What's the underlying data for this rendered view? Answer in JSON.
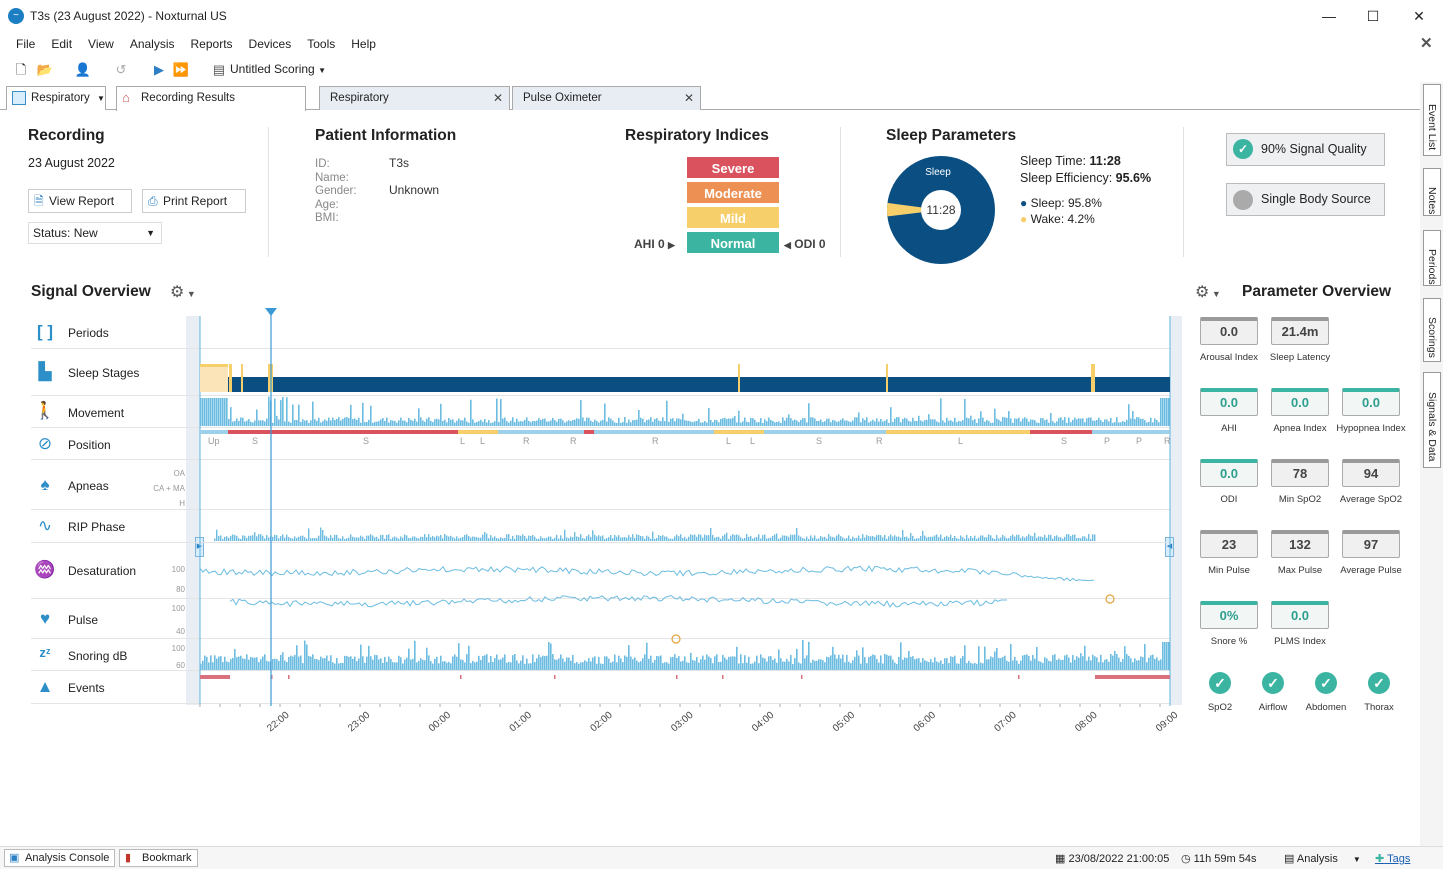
{
  "window": {
    "title": "T3s (23 August 2022)  - Noxturnal US",
    "min": "—",
    "max": "☐",
    "close": "✕"
  },
  "menu": [
    "File",
    "Edit",
    "View",
    "Analysis",
    "Reports",
    "Devices",
    "Tools",
    "Help"
  ],
  "toolbar": {
    "scoring_label": "Untitled Scoring"
  },
  "tabs": [
    {
      "label": "Respiratory"
    },
    {
      "label": "Recording Results"
    },
    {
      "label": "Respiratory"
    },
    {
      "label": "Pulse Oximeter"
    }
  ],
  "side_tabs": [
    "Event List",
    "Notes",
    "Periods",
    "Scorings",
    "Signals & Data"
  ],
  "recording": {
    "heading": "Recording",
    "date": "23 August 2022",
    "view_report": "View Report",
    "print_report": "Print Report",
    "status": "Status: New"
  },
  "patient": {
    "heading": "Patient Information",
    "fields": [
      {
        "label": "ID:",
        "value": "T3s"
      },
      {
        "label": "Name:",
        "value": ""
      },
      {
        "label": "Gender:",
        "value": "Unknown"
      },
      {
        "label": "Age:",
        "value": ""
      },
      {
        "label": "BMI:",
        "value": ""
      }
    ]
  },
  "respiratory_indices": {
    "heading": "Respiratory Indices",
    "levels": [
      "Severe",
      "Moderate",
      "Mild",
      "Normal"
    ],
    "colors": [
      "#d9525e",
      "#ec9153",
      "#f7cf6a",
      "#3bb5a2"
    ],
    "ahi": "AHI 0",
    "odi": "ODI 0"
  },
  "sleep": {
    "heading": "Sleep Parameters",
    "donut_label": "Sleep",
    "donut_center": "11:28",
    "sleep_time_label": "Sleep Time:",
    "sleep_time": "11:28",
    "efficiency_label": "Sleep Efficiency:",
    "efficiency": "95.6%",
    "sleep_legend": "Sleep: 95.8%",
    "wake_legend": "Wake: 4.2%",
    "sleep_fraction": 0.958,
    "sleep_color": "#0b4f82",
    "wake_color": "#f7cf6a"
  },
  "quality": {
    "signal": "90% Signal Quality",
    "source": "Single Body Source"
  },
  "signal_overview": {
    "heading": "Signal Overview",
    "rows": [
      {
        "label": "Periods",
        "icon": "bracket-icon"
      },
      {
        "label": "Sleep Stages",
        "icon": "sleep-stages-icon"
      },
      {
        "label": "Movement",
        "icon": "movement-icon"
      },
      {
        "label": "Position",
        "icon": "compass-icon"
      },
      {
        "label": "Apneas",
        "icon": "lungs-icon"
      },
      {
        "label": "RIP Phase",
        "icon": "wave-icon"
      },
      {
        "label": "Desaturation",
        "icon": "desaturation-icon"
      },
      {
        "label": "Pulse",
        "icon": "heart-icon"
      },
      {
        "label": "Snoring dB",
        "icon": "snore-icon"
      },
      {
        "label": "Events",
        "icon": "warning-icon"
      }
    ],
    "apnea_axis": [
      "OA",
      "CA + MA",
      "H"
    ],
    "desat_axis": [
      "100",
      "80"
    ],
    "pulse_axis": [
      "100",
      "40"
    ],
    "snore_axis": [
      "100",
      "60"
    ],
    "position_labels": [
      "Up",
      "S",
      "S",
      "L",
      "L",
      "R",
      "R",
      "R",
      "L",
      "L",
      "S",
      "R",
      "L",
      "S",
      "P",
      "P",
      "R"
    ],
    "times": [
      "22:00",
      "23:00",
      "00:00",
      "01:00",
      "02:00",
      "03:00",
      "04:00",
      "05:00",
      "06:00",
      "07:00",
      "08:00",
      "09:00"
    ]
  },
  "parameter_overview": {
    "heading": "Parameter Overview",
    "params": [
      {
        "value": "0.0",
        "label": "Arousal Index",
        "teal": false
      },
      {
        "value": "21.4m",
        "label": "Sleep Latency",
        "teal": false
      },
      {
        "value": "0.0",
        "label": "AHI",
        "teal": true
      },
      {
        "value": "0.0",
        "label": "Apnea Index",
        "teal": true
      },
      {
        "value": "0.0",
        "label": "Hypopnea Index",
        "teal": true
      },
      {
        "value": "0.0",
        "label": "ODI",
        "teal": true
      },
      {
        "value": "78",
        "label": "Min SpO2",
        "teal": false
      },
      {
        "value": "94",
        "label": "Average SpO2",
        "teal": false
      },
      {
        "value": "23",
        "label": "Min Pulse",
        "teal": false
      },
      {
        "value": "132",
        "label": "Max Pulse",
        "teal": false
      },
      {
        "value": "97",
        "label": "Average Pulse",
        "teal": false
      },
      {
        "value": "0%",
        "label": "Snore %",
        "teal": true
      },
      {
        "value": "0.0",
        "label": "PLMS Index",
        "teal": true
      }
    ],
    "checks": [
      "SpO2",
      "Airflow",
      "Abdomen",
      "Thorax"
    ]
  },
  "statusbar": {
    "analysis_console": "Analysis Console",
    "bookmark": "Bookmark",
    "datetime": "23/08/2022 21:00:05",
    "duration": "11h 59m 54s",
    "analysis": "Analysis",
    "tags": "Tags"
  }
}
